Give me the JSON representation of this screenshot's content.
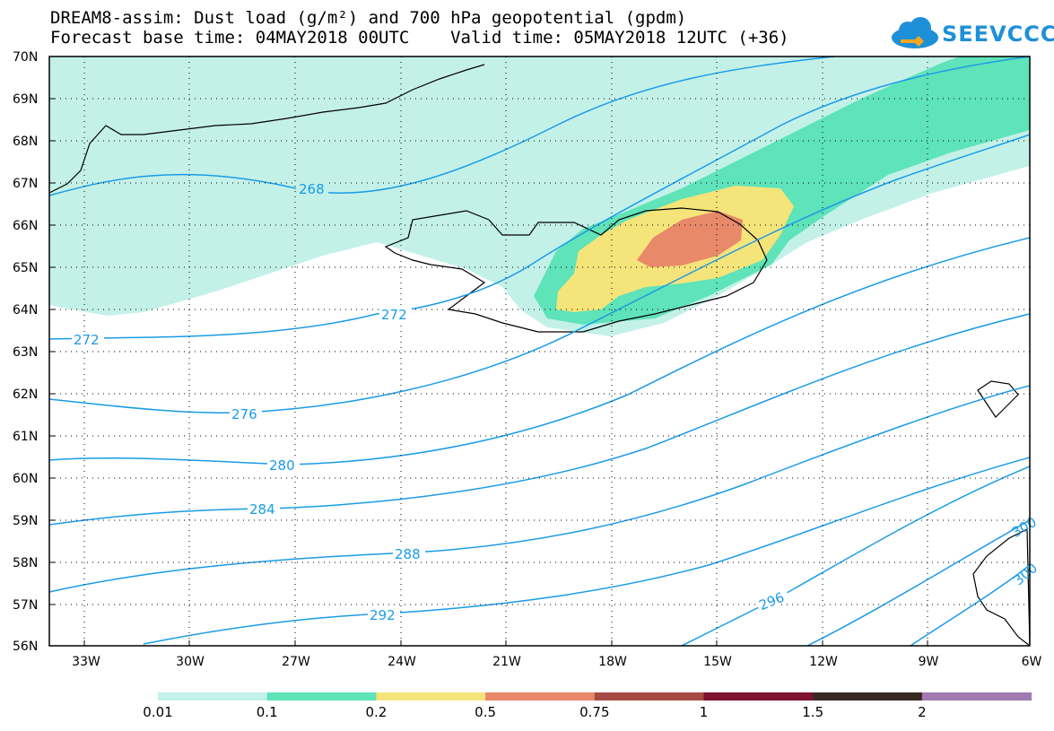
{
  "title_line1": "DREAM8-assim: Dust load (g/m²) and 700 hPa geopotential (gpdm)",
  "title_line2": "Forecast base time: 04MAY2018 00UTC    Valid time: 05MAY2018 12UTC (+36)",
  "logo_text": "SEEVCCC",
  "lat_labels": [
    "70N",
    "69N",
    "68N",
    "67N",
    "66N",
    "65N",
    "64N",
    "63N",
    "62N",
    "61N",
    "60N",
    "59N",
    "58N",
    "57N",
    "56N"
  ],
  "lon_labels": [
    "33W",
    "30W",
    "27W",
    "24W",
    "21W",
    "18W",
    "15W",
    "12W",
    "9W",
    "6W"
  ],
  "contour_labels": [
    "268",
    "272",
    "272",
    "276",
    "280",
    "284",
    "288",
    "292",
    "296",
    "300",
    "300"
  ],
  "colorbar": {
    "labels": [
      "0.01",
      "0.1",
      "0.2",
      "0.5",
      "0.75",
      "1",
      "1.5",
      "2"
    ],
    "colors": [
      "#c3f1e8",
      "#5fe3b9",
      "#f5e47a",
      "#e8896a",
      "#a64b43",
      "#7d1232",
      "#3a2a22",
      "#a07ab0"
    ]
  },
  "colors": {
    "contour": "#1a9be6",
    "dust_0_01": "#c3f1e8",
    "dust_0_1": "#5fe3b9",
    "dust_0_2": "#f5e47a",
    "dust_0_5": "#e8896a"
  }
}
